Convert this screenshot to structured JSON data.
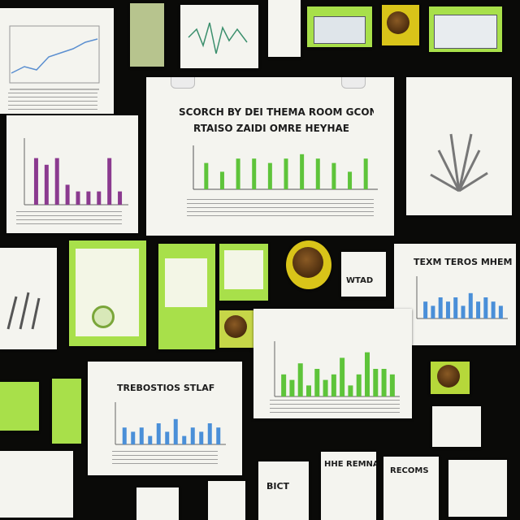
{
  "boards": {
    "center_chart": {
      "title_line1": "SCORCH BY DEI THEMA ROOM GCON",
      "title_line2": "RTAISO ZAIDI OMRE HEYHAE"
    },
    "right_chart": {
      "title": "TEXM TEROS MHEM"
    },
    "bottom_left_chart": {
      "title": "TREBOSTIOS STLAF"
    },
    "tile_labels": [
      "WTAD",
      "BICT",
      "HHE REMNA",
      "RECOMS"
    ]
  },
  "chart_data": [
    {
      "type": "bar",
      "series": [
        {
          "values": [
            6,
            4,
            7,
            7,
            6,
            7,
            8,
            7,
            6,
            4,
            7
          ]
        }
      ],
      "ylim": [
        0,
        10
      ]
    },
    {
      "type": "bar",
      "series": [
        {
          "values": [
            4,
            3,
            6,
            2,
            5,
            3,
            4,
            7,
            2,
            4,
            8,
            5,
            5,
            4
          ]
        }
      ],
      "ylim": [
        0,
        10
      ]
    },
    {
      "type": "bar",
      "series": [
        {
          "values": [
            4,
            3,
            4,
            2,
            5,
            3,
            6,
            2,
            4,
            3,
            5,
            4
          ]
        }
      ],
      "ylim": [
        0,
        10
      ]
    },
    {
      "type": "bar",
      "series": [
        {
          "values": [
            7,
            6,
            7,
            3,
            2,
            2,
            2,
            7,
            2
          ]
        }
      ],
      "ylim": [
        0,
        10
      ]
    },
    {
      "type": "bar",
      "series": [
        {
          "values": [
            4,
            3,
            5,
            4,
            5,
            3,
            6,
            4,
            5,
            4,
            3
          ]
        }
      ],
      "ylim": [
        0,
        10
      ]
    }
  ],
  "colors": {
    "background": "#0a0a08",
    "paper": "#f4f4ef",
    "lime": "#a8e04a",
    "bar_green": "#5ec43a",
    "bar_blue": "#4a8fd8",
    "bar_purple": "#8b3a8f"
  }
}
